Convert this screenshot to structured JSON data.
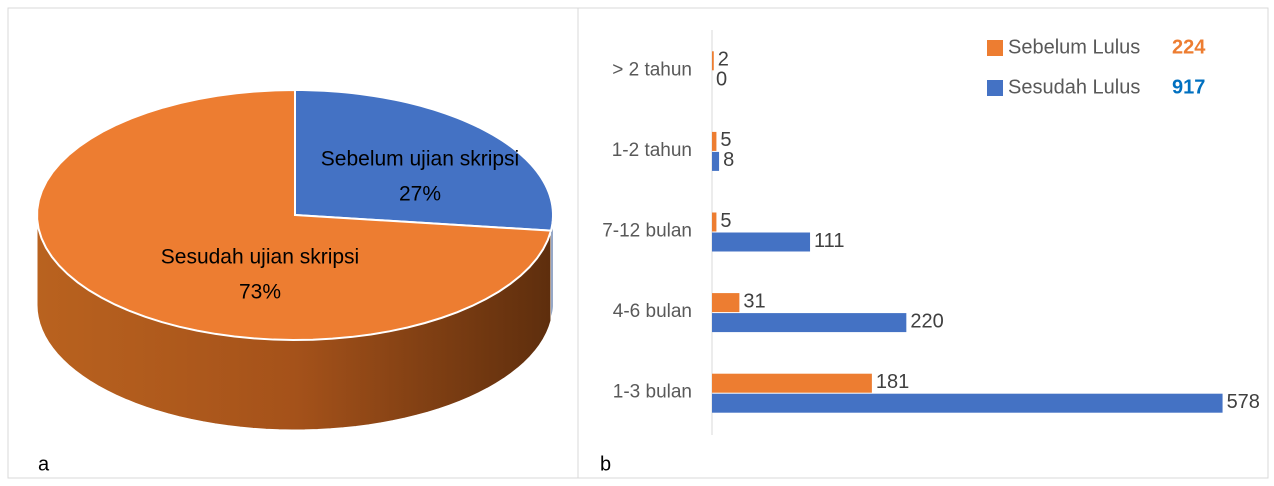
{
  "chart_data": [
    {
      "type": "pie",
      "panel_label": "a",
      "categories": [
        "Sebelum ujian skripsi",
        "Sesudah ujian skripsi"
      ],
      "values": [
        27,
        73
      ],
      "value_labels": [
        "27%",
        "73%"
      ],
      "colors": [
        "#4472c4",
        "#ed7d31"
      ]
    },
    {
      "type": "bar",
      "orientation": "horizontal",
      "panel_label": "b",
      "categories": [
        "> 2 tahun",
        "1-2 tahun",
        "7-12 bulan",
        "4-6 bulan",
        "1-3 bulan"
      ],
      "series": [
        {
          "name": "Sebelum Lulus",
          "total": 224,
          "total_color": "#ed7d31",
          "color": "#ed7d31",
          "values": [
            2,
            5,
            5,
            31,
            181
          ]
        },
        {
          "name": "Sesudah Lulus",
          "total": 917,
          "total_color": "#0070c0",
          "color": "#4472c4",
          "values": [
            0,
            8,
            111,
            220,
            578
          ]
        }
      ],
      "xlim": [
        0,
        600
      ],
      "legend": "upper right"
    }
  ]
}
